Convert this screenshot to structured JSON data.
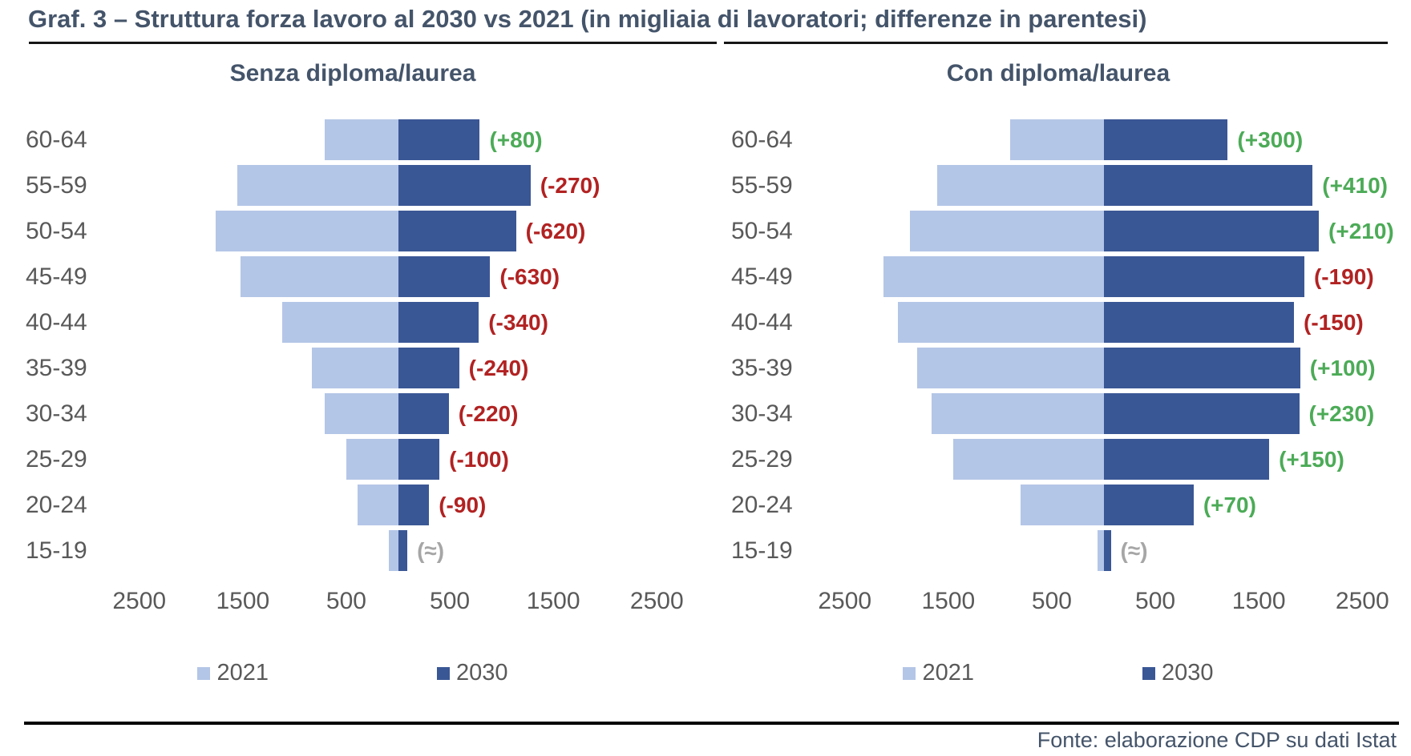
{
  "title": "Graf. 3 – Struttura forza lavoro al 2030 vs 2021 (in migliaia di lavoratori; differenze in parentesi)",
  "footer": "Fonte: elaborazione CDP su dati Istat",
  "colors": {
    "y2021": "#b4c6e7",
    "y2030": "#3a5795",
    "positive": "#4cab57",
    "negative": "#b22222",
    "neutral": "#a6a6a6",
    "heading": "#44546a",
    "axis_text": "#595959"
  },
  "legend": {
    "items": [
      {
        "label": "2021",
        "color": "#b4c6e7"
      },
      {
        "label": "2030",
        "color": "#3a5795"
      }
    ]
  },
  "chart_data": [
    {
      "type": "bar",
      "title": "Senza diploma/laurea",
      "orientation": "mirrored horizontal bars: 2021 extends left of center, 2030 extends right",
      "unit": "migliaia di lavoratori",
      "categories": [
        "60-64",
        "55-59",
        "50-54",
        "45-49",
        "40-44",
        "35-39",
        "30-34",
        "25-29",
        "20-24",
        "15-19"
      ],
      "series": [
        {
          "name": "2021",
          "values": [
            710,
            1550,
            1760,
            1520,
            1120,
            830,
            710,
            500,
            390,
            90
          ]
        },
        {
          "name": "2030",
          "values": [
            790,
            1280,
            1140,
            890,
            780,
            590,
            490,
            400,
            300,
            90
          ]
        }
      ],
      "annotations": [
        "(+80)",
        "(-270)",
        "(-620)",
        "(-630)",
        "(-340)",
        "(-240)",
        "(-220)",
        "(-100)",
        "(-90)",
        "(≈)"
      ],
      "x_ticks": [
        "2500",
        "1500",
        "500",
        "500",
        "1500",
        "2500"
      ],
      "axis_range_per_side": [
        0,
        2500
      ],
      "grid": false,
      "legend_position": "bottom"
    },
    {
      "type": "bar",
      "title": "Con diploma/laurea",
      "orientation": "mirrored horizontal bars: 2021 extends left of center, 2030 extends right",
      "unit": "migliaia di lavoratori",
      "categories": [
        "60-64",
        "55-59",
        "50-54",
        "45-49",
        "40-44",
        "35-39",
        "30-34",
        "25-29",
        "20-24",
        "15-19"
      ],
      "series": [
        {
          "name": "2021",
          "values": [
            900,
            1610,
            1870,
            2130,
            1990,
            1800,
            1660,
            1450,
            800,
            60
          ]
        },
        {
          "name": "2030",
          "values": [
            1200,
            2020,
            2080,
            1940,
            1840,
            1900,
            1890,
            1600,
            870,
            70
          ]
        }
      ],
      "annotations": [
        "(+300)",
        "(+410)",
        "(+210)",
        "(-190)",
        "(-150)",
        "(+100)",
        "(+230)",
        "(+150)",
        "(+70)",
        "(≈)"
      ],
      "x_ticks": [
        "2500",
        "1500",
        "500",
        "500",
        "1500",
        "2500"
      ],
      "axis_range_per_side": [
        0,
        2500
      ],
      "grid": false,
      "legend_position": "bottom"
    }
  ]
}
